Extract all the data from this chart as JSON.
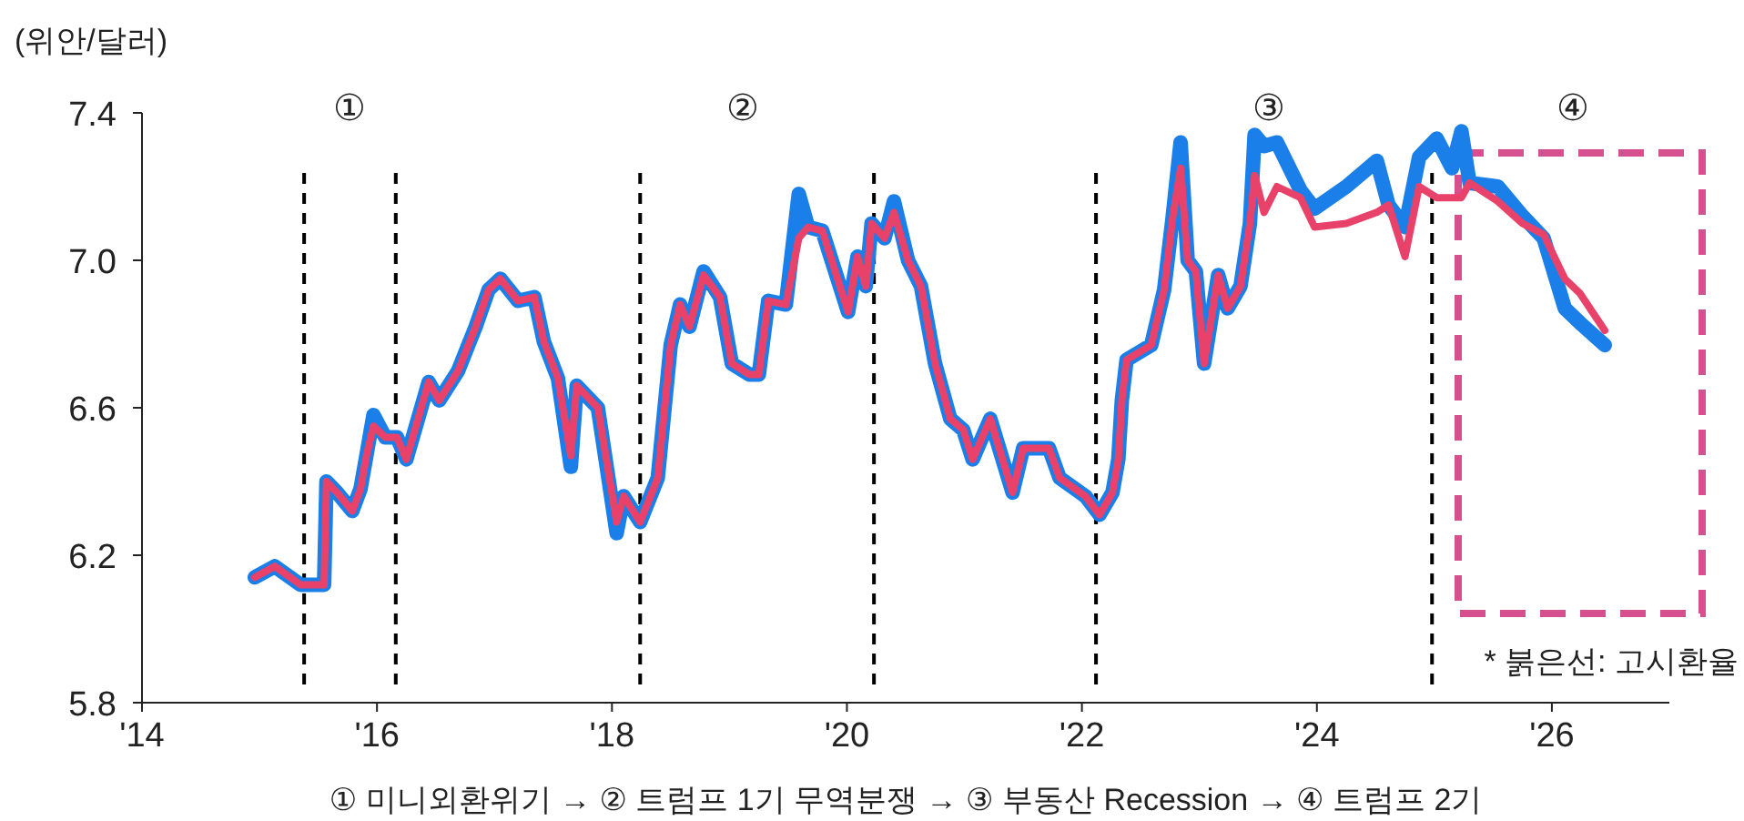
{
  "chart_data": {
    "type": "line",
    "ylabel": "(위안/달러)",
    "xlim": [
      2014,
      2027
    ],
    "ylim": [
      5.8,
      7.4
    ],
    "xticks": [
      {
        "value": 2014,
        "label": "'14"
      },
      {
        "value": 2016,
        "label": "'16"
      },
      {
        "value": 2018,
        "label": "'18"
      },
      {
        "value": 2020,
        "label": "'20"
      },
      {
        "value": 2022,
        "label": "'22"
      },
      {
        "value": 2024,
        "label": "'24"
      },
      {
        "value": 2026,
        "label": "'26"
      }
    ],
    "yticks": [
      5.8,
      6.2,
      6.6,
      {
        "value": 7.0,
        "label": "7.0"
      },
      7.4
    ],
    "x": [
      2014.96,
      2015.13,
      2015.35,
      2015.55,
      2015.57,
      2015.66,
      2015.79,
      2015.86,
      2015.91,
      2015.97,
      2016.07,
      2016.17,
      2016.25,
      2016.44,
      2016.53,
      2016.69,
      2016.84,
      2016.95,
      2017.05,
      2017.2,
      2017.34,
      2017.42,
      2017.54,
      2017.65,
      2017.7,
      2017.88,
      2018.04,
      2018.1,
      2018.24,
      2018.39,
      2018.5,
      2018.58,
      2018.66,
      2018.78,
      2018.92,
      2019.02,
      2019.17,
      2019.25,
      2019.33,
      2019.48,
      2019.59,
      2019.67,
      2019.79,
      2019.87,
      2020.01,
      2020.09,
      2020.16,
      2020.21,
      2020.32,
      2020.4,
      2020.52,
      2020.63,
      2020.75,
      2020.88,
      2020.99,
      2021.07,
      2021.22,
      2021.41,
      2021.5,
      2021.72,
      2021.81,
      2022.03,
      2022.15,
      2022.26,
      2022.31,
      2022.34,
      2022.38,
      2022.59,
      2022.7,
      2022.77,
      2022.84,
      2022.9,
      2022.97,
      2023.04,
      2023.16,
      2023.24,
      2023.35,
      2023.43,
      2023.47,
      2023.55,
      2023.66,
      2023.86,
      2023.98,
      2024.25,
      2024.51,
      2024.61,
      2024.75,
      2024.87,
      2025.02,
      2025.15,
      2025.23,
      2025.3,
      2025.54,
      2025.75,
      2025.93,
      2026.11,
      2026.24,
      2026.45
    ],
    "series": [
      {
        "color": "#1a7fe8",
        "values": [
          6.14,
          6.17,
          6.12,
          6.12,
          6.4,
          6.37,
          6.32,
          6.38,
          6.47,
          6.58,
          6.52,
          6.52,
          6.46,
          6.67,
          6.62,
          6.7,
          6.82,
          6.92,
          6.95,
          6.89,
          6.9,
          6.78,
          6.68,
          6.44,
          6.66,
          6.6,
          6.26,
          6.36,
          6.29,
          6.41,
          6.77,
          6.88,
          6.82,
          6.97,
          6.9,
          6.72,
          6.69,
          6.69,
          6.89,
          6.88,
          7.18,
          7.09,
          7.08,
          7.0,
          6.86,
          7.01,
          6.93,
          7.1,
          7.06,
          7.16,
          7.0,
          6.93,
          6.72,
          6.57,
          6.54,
          6.46,
          6.57,
          6.37,
          6.49,
          6.49,
          6.41,
          6.36,
          6.31,
          6.37,
          6.46,
          6.62,
          6.73,
          6.77,
          6.92,
          7.11,
          7.32,
          7.0,
          6.97,
          6.72,
          6.96,
          6.87,
          6.93,
          7.1,
          7.34,
          7.31,
          7.32,
          7.19,
          7.14,
          7.2,
          7.27,
          7.15,
          7.09,
          7.28,
          7.33,
          7.25,
          7.35,
          7.21,
          7.2,
          7.12,
          7.06,
          6.87,
          6.83,
          6.77
        ]
      },
      {
        "color": "#e8426a",
        "values": [
          6.14,
          6.17,
          6.12,
          6.12,
          6.4,
          6.37,
          6.32,
          6.38,
          6.47,
          6.55,
          6.52,
          6.52,
          6.46,
          6.67,
          6.62,
          6.7,
          6.82,
          6.92,
          6.95,
          6.89,
          6.9,
          6.78,
          6.68,
          6.47,
          6.66,
          6.6,
          6.29,
          6.36,
          6.29,
          6.41,
          6.77,
          6.88,
          6.82,
          6.96,
          6.9,
          6.72,
          6.69,
          6.69,
          6.89,
          6.88,
          7.06,
          7.09,
          7.08,
          7.0,
          6.86,
          7.01,
          6.93,
          7.1,
          7.06,
          7.13,
          7.0,
          6.93,
          6.72,
          6.57,
          6.54,
          6.46,
          6.57,
          6.37,
          6.49,
          6.49,
          6.41,
          6.36,
          6.31,
          6.37,
          6.46,
          6.62,
          6.73,
          6.77,
          6.92,
          7.11,
          7.25,
          7.0,
          6.97,
          6.72,
          6.96,
          6.87,
          6.93,
          7.1,
          7.23,
          7.13,
          7.2,
          7.17,
          7.09,
          7.1,
          7.13,
          7.15,
          7.01,
          7.2,
          7.17,
          7.17,
          7.17,
          7.21,
          7.16,
          7.1,
          7.07,
          6.95,
          6.91,
          6.81
        ]
      }
    ],
    "ref_lines": [
      {
        "axis": "x",
        "value": 2015.38,
        "color": "#000000",
        "line_style": "dashed"
      },
      {
        "axis": "x",
        "value": 2016.16,
        "color": "#000000",
        "line_style": "dashed"
      },
      {
        "axis": "x",
        "value": 2018.24,
        "color": "#000000",
        "line_style": "dashed"
      },
      {
        "axis": "x",
        "value": 2020.23,
        "color": "#000000",
        "line_style": "dashed"
      },
      {
        "axis": "x",
        "value": 2022.12,
        "color": "#000000",
        "line_style": "dashed"
      },
      {
        "axis": "x",
        "value": 2024.98,
        "color": "#000000",
        "line_style": "dashed"
      }
    ],
    "annotations": [
      "①",
      "②",
      "③",
      "④",
      "* 붉은선: 고시환율",
      "① 미니외환위기 → ② 트럼프 1기 무역분쟁 → ③ 부동산 Recession → ④ 트럼프 2기"
    ],
    "grid": false,
    "marker": "none",
    "line_style": "solid"
  }
}
